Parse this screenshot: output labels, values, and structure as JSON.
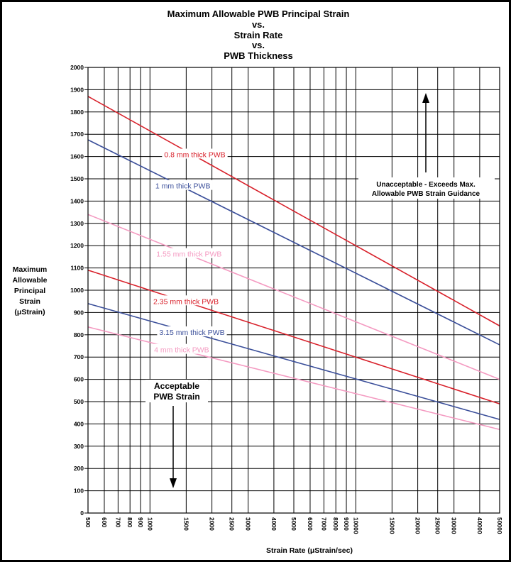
{
  "chart_data": {
    "type": "line",
    "title_lines": [
      "Maximum Allowable PWB Principal Strain",
      "vs.",
      "Strain Rate",
      "vs.",
      "PWB Thickness"
    ],
    "xlabel": "Strain Rate (μStrain/sec)",
    "ylabel_lines": [
      "Maximum",
      "Allowable",
      "Principal",
      "Strain",
      "(μStrain)"
    ],
    "x_scale": "log",
    "xlim": [
      500,
      50000
    ],
    "ylim": [
      0,
      2000
    ],
    "y_ticks": [
      0,
      100,
      200,
      300,
      400,
      500,
      600,
      700,
      800,
      900,
      1000,
      1100,
      1200,
      1300,
      1400,
      1500,
      1600,
      1700,
      1800,
      1900,
      2000
    ],
    "x_ticks": [
      500,
      600,
      700,
      800,
      900,
      1000,
      1500,
      2000,
      2500,
      3000,
      4000,
      5000,
      6000,
      7000,
      8000,
      9000,
      10000,
      15000,
      20000,
      25000,
      30000,
      40000,
      50000
    ],
    "x_tick_labels": [
      "500",
      "600",
      "700",
      "800",
      "900",
      "1000",
      "1500",
      "2000",
      "2500",
      "3000",
      "4000",
      "5000",
      "6000",
      "7000",
      "8000",
      "9000",
      "10000",
      "15000",
      "20000",
      "25000",
      "30000",
      "40000",
      "50000"
    ],
    "grid": true,
    "series": [
      {
        "name": "0.8 mm thick PWB",
        "color": "#d8202a",
        "x": [
          500,
          50000
        ],
        "y": [
          1870,
          840
        ]
      },
      {
        "name": "1 mm thick PWB",
        "color": "#3b4f9a",
        "x": [
          500,
          50000
        ],
        "y": [
          1675,
          755
        ]
      },
      {
        "name": "1.55 mm thick PWB",
        "color": "#f49ac1",
        "x": [
          500,
          50000
        ],
        "y": [
          1340,
          600
        ]
      },
      {
        "name": "2.35 mm thick PWB",
        "color": "#d8202a",
        "x": [
          500,
          50000
        ],
        "y": [
          1090,
          490
        ]
      },
      {
        "name": "3.15 mm thick PWB",
        "color": "#3b4f9a",
        "x": [
          500,
          50000
        ],
        "y": [
          940,
          420
        ]
      },
      {
        "name": "4 mm thick PWB",
        "color": "#f49ac1",
        "x": [
          500,
          50000
        ],
        "y": [
          835,
          375
        ]
      }
    ],
    "annotations": {
      "unacceptable_lines": [
        "Unacceptable - Exceeds Max.",
        "Allowable PWB Strain Guidance"
      ],
      "acceptable_lines": [
        "Acceptable",
        "PWB Strain"
      ]
    }
  }
}
